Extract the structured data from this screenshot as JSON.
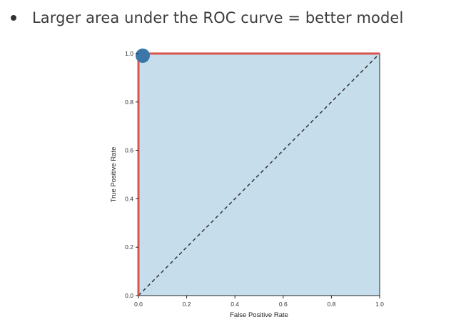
{
  "bullet": {
    "text": "Larger area under the ROC curve = better model"
  },
  "chart_data": {
    "type": "area",
    "title": "",
    "xlabel": "False Positive Rate",
    "ylabel": "True Positive Rate",
    "xlim": [
      0.0,
      1.0
    ],
    "ylim": [
      0.0,
      1.0
    ],
    "xticks": [
      "0.0",
      "0.2",
      "0.4",
      "0.6",
      "0.8",
      "1.0"
    ],
    "yticks": [
      "0.0",
      "0.2",
      "0.4",
      "0.6",
      "0.8",
      "1.0"
    ],
    "grid": false,
    "legend": "none",
    "series": [
      {
        "x": [
          0.0,
          0.0,
          1.0
        ],
        "y": [
          0.0,
          1.0,
          1.0
        ],
        "color": "#d9534f",
        "fill": "#c6deec"
      },
      {
        "x": [
          0.0,
          1.0
        ],
        "y": [
          0.0,
          1.0
        ],
        "color": "#333333",
        "style": "dashed"
      }
    ],
    "highlight_point": {
      "x": 0.0,
      "y": 1.0,
      "color": "#3a76a8"
    }
  }
}
